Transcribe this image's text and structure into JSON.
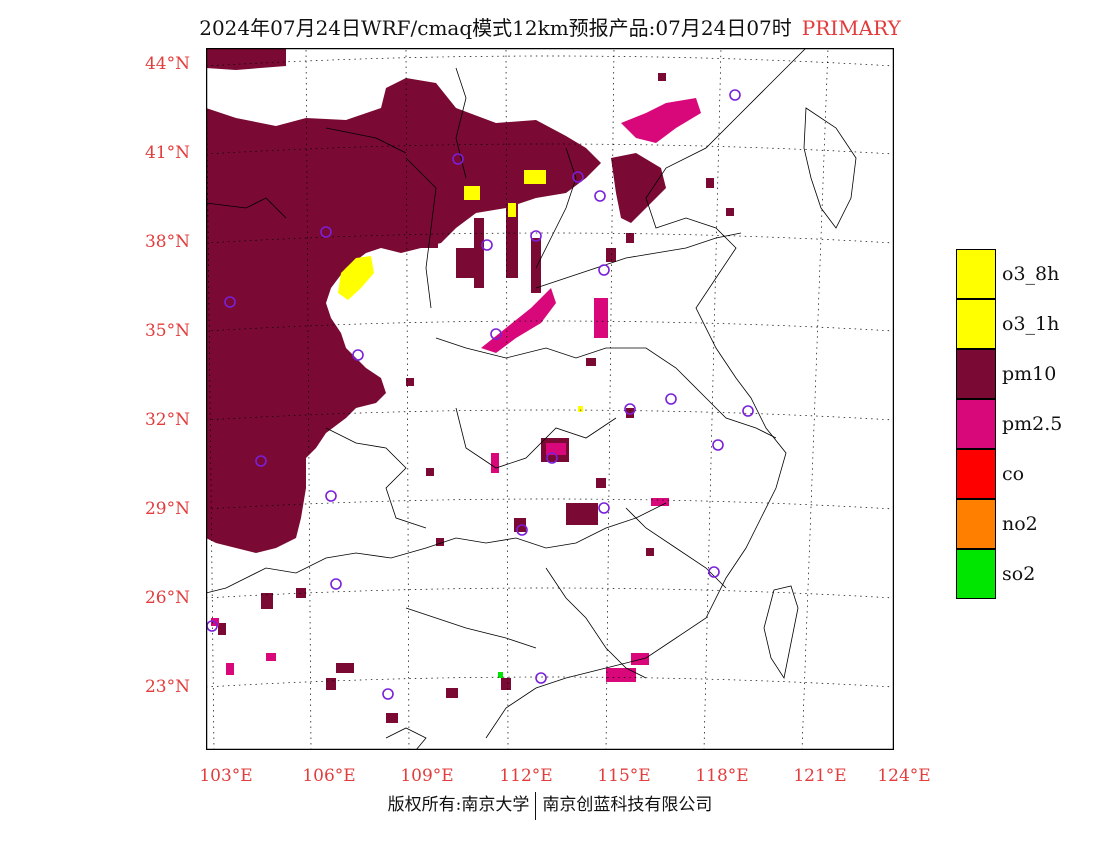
{
  "title": {
    "main": "2024年07月24日WRF/cmaq模式12km预报产品:07月24日07时",
    "tag": "PRIMARY"
  },
  "latitude_labels": [
    "44°N",
    "41°N",
    "38°N",
    "35°N",
    "32°N",
    "29°N",
    "26°N",
    "23°N"
  ],
  "longitude_labels": [
    "103°E",
    "106°E",
    "109°E",
    "112°E",
    "115°E",
    "118°E",
    "121°E",
    "124°E"
  ],
  "legend": [
    {
      "label": "o3_8h",
      "color": "#ffff00"
    },
    {
      "label": "o3_1h",
      "color": "#ffff00"
    },
    {
      "label": "pm10",
      "color": "#7a0a33"
    },
    {
      "label": "pm2.5",
      "color": "#d8087a"
    },
    {
      "label": "co",
      "color": "#ff0000"
    },
    {
      "label": "no2",
      "color": "#ff7f00"
    },
    {
      "label": "so2",
      "color": "#00e600"
    }
  ],
  "footer": {
    "left": "版权所有:南京大学",
    "right": "南京创蓝科技有限公司"
  },
  "map": {
    "primary_pollutant_colors": {
      "pm10": "#7a0a33",
      "pm25": "#d8087a",
      "o3": "#ffff00",
      "so2": "#00e600"
    },
    "station_marker_color": "#7a20d8"
  }
}
